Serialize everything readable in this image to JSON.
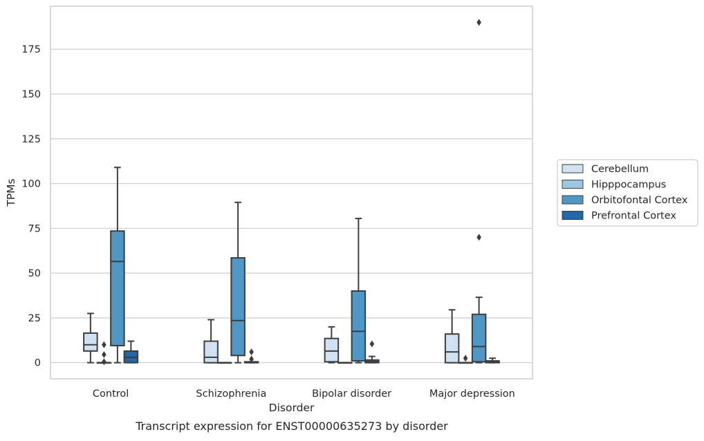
{
  "chart_data": {
    "type": "box",
    "title": "",
    "caption": "Transcript expression for ENST00000635273 by disorder",
    "xlabel": "Disorder",
    "ylabel": "TPMs",
    "categories": [
      "Control",
      "Schizophrenia",
      "Bipolar disorder",
      "Major depression"
    ],
    "ylim": [
      -9,
      199
    ],
    "yticks": [
      0,
      25,
      50,
      75,
      100,
      125,
      150,
      175
    ],
    "grid": true,
    "legend_position": "right",
    "series": [
      {
        "name": "Cerebellum",
        "color": "#d0e1f2",
        "boxes": [
          {
            "whislo": 0,
            "q1": 6.5,
            "med": 10,
            "q3": 16.5,
            "whishi": 27.5,
            "fliers": []
          },
          {
            "whislo": 0,
            "q1": 0,
            "med": 3,
            "q3": 12,
            "whishi": 24,
            "fliers": []
          },
          {
            "whislo": 0,
            "q1": 0.5,
            "med": 6.5,
            "q3": 13.5,
            "whishi": 20,
            "fliers": []
          },
          {
            "whislo": 0,
            "q1": 0,
            "med": 6,
            "q3": 16,
            "whishi": 29.5,
            "fliers": []
          }
        ]
      },
      {
        "name": "Hipppocampus",
        "color": "#9ac8e0",
        "boxes": [
          {
            "whislo": 0,
            "q1": 0,
            "med": 0,
            "q3": 0,
            "whishi": 0,
            "fliers": [
              10,
              4.5,
              0.5
            ]
          },
          {
            "whislo": 0,
            "q1": 0,
            "med": 0,
            "q3": 0,
            "whishi": 0,
            "fliers": []
          },
          {
            "whislo": 0,
            "q1": 0,
            "med": 0,
            "q3": 0,
            "whishi": 0,
            "fliers": []
          },
          {
            "whislo": 0,
            "q1": 0,
            "med": 0,
            "q3": 0,
            "whishi": 0,
            "fliers": [
              2.5
            ]
          }
        ]
      },
      {
        "name": "Orbitofontal Cortex",
        "color": "#5097c6",
        "boxes": [
          {
            "whislo": 0,
            "q1": 9.5,
            "med": 56.5,
            "q3": 73.5,
            "whishi": 109,
            "fliers": []
          },
          {
            "whislo": 0,
            "q1": 4,
            "med": 23.5,
            "q3": 58.5,
            "whishi": 89.5,
            "fliers": []
          },
          {
            "whislo": 0,
            "q1": 1,
            "med": 17.5,
            "q3": 40,
            "whishi": 80.5,
            "fliers": []
          },
          {
            "whislo": 0,
            "q1": 0.5,
            "med": 9,
            "q3": 27,
            "whishi": 36.5,
            "fliers": [
              70,
              190
            ]
          }
        ]
      },
      {
        "name": "Prefrontal Cortex",
        "color": "#2467a8",
        "boxes": [
          {
            "whislo": 0,
            "q1": 0,
            "med": 3,
            "q3": 6.5,
            "whishi": 12,
            "fliers": []
          },
          {
            "whislo": 0,
            "q1": 0,
            "med": 0,
            "q3": 0.5,
            "whishi": 0.5,
            "fliers": [
              6,
              2
            ]
          },
          {
            "whislo": 0,
            "q1": 0,
            "med": 0.5,
            "q3": 1.5,
            "whishi": 3.5,
            "fliers": [
              10.5
            ]
          },
          {
            "whislo": 0,
            "q1": 0,
            "med": 0.5,
            "q3": 1,
            "whishi": 2.5,
            "fliers": []
          }
        ]
      }
    ]
  }
}
